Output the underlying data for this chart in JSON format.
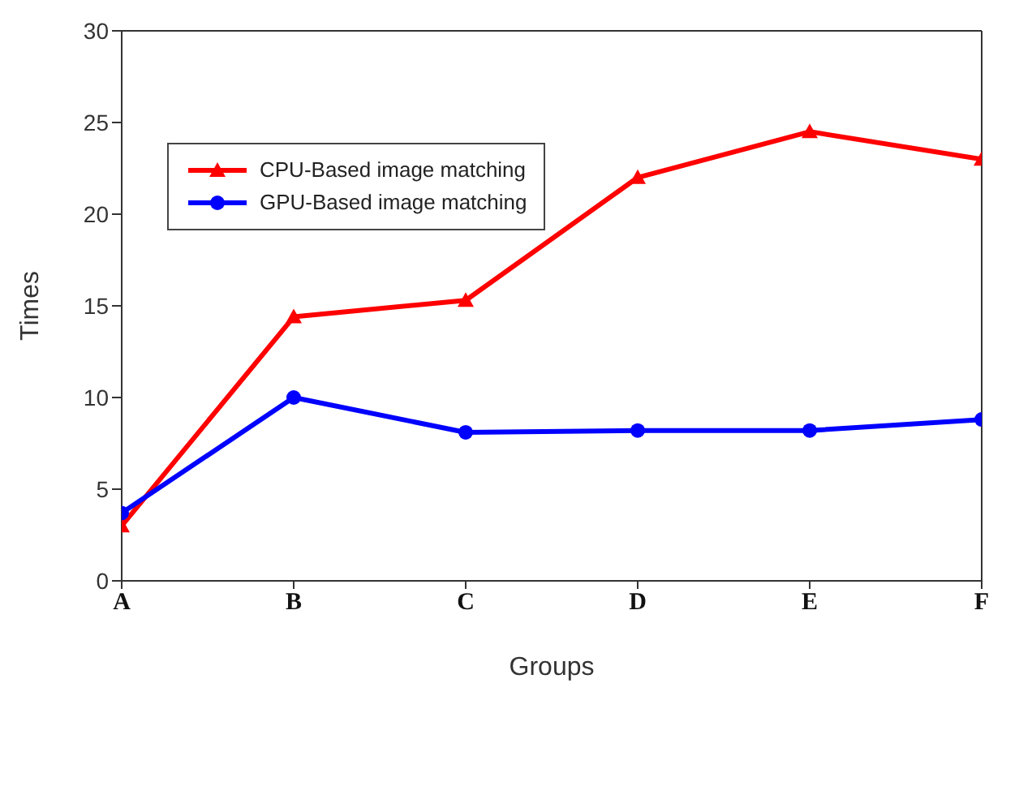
{
  "chart_data": {
    "type": "line",
    "xlabel": "Groups",
    "ylabel": "Times",
    "categories": [
      "A",
      "B",
      "C",
      "D",
      "E",
      "F"
    ],
    "ylim": [
      0,
      30
    ],
    "yticks": [
      0,
      5,
      10,
      15,
      20,
      25,
      30
    ],
    "grid": false,
    "legend": "top left",
    "line_style": "solid",
    "series": [
      {
        "name": "CPU-Based image matching",
        "color": "#ff0000",
        "marker": "triangle",
        "values": [
          3.0,
          14.4,
          15.3,
          22.0,
          24.5,
          23.0
        ]
      },
      {
        "name": "GPU-Based image matching",
        "color": "#0000ff",
        "marker": "circle",
        "values": [
          3.7,
          10.0,
          8.1,
          8.2,
          8.2,
          8.8
        ]
      }
    ]
  }
}
